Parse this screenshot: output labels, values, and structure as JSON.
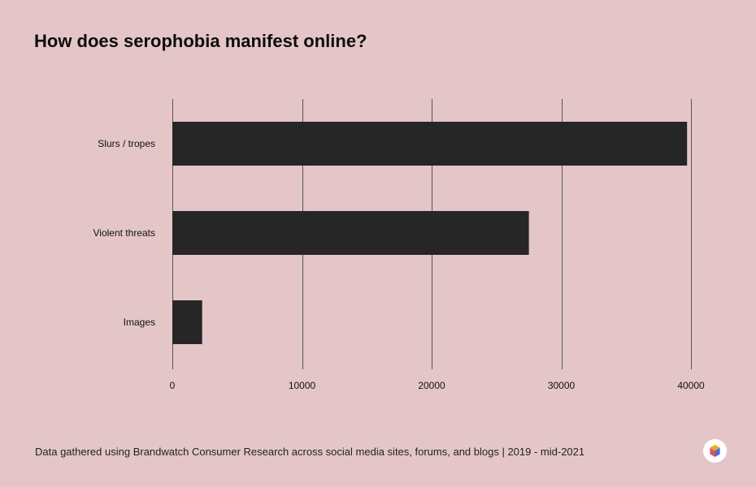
{
  "title": "How does serophobia manifest online?",
  "footer": "Data gathered using Brandwatch Consumer Research across social media sites, forums, and blogs | 2019 - mid-2021",
  "logo": {
    "name": "brandwatch-hexagon-logo",
    "colors": [
      "#e8505b",
      "#f5a623",
      "#2fb8c4",
      "#4a6cd4"
    ]
  },
  "colors": {
    "background": "#e4c6c8",
    "bar": "#262626",
    "gridline": "#555555"
  },
  "chart_data": {
    "type": "bar",
    "orientation": "horizontal",
    "categories": [
      "Slurs / tropes",
      "Violent threats",
      "Images"
    ],
    "values": [
      39700,
      27500,
      2300
    ],
    "xlim": [
      0,
      40000
    ],
    "xticks": [
      "0",
      "10000",
      "20000",
      "30000",
      "40000"
    ],
    "xtick_values": [
      0,
      10000,
      20000,
      30000,
      40000
    ],
    "grid": "vertical",
    "legend": "none"
  }
}
